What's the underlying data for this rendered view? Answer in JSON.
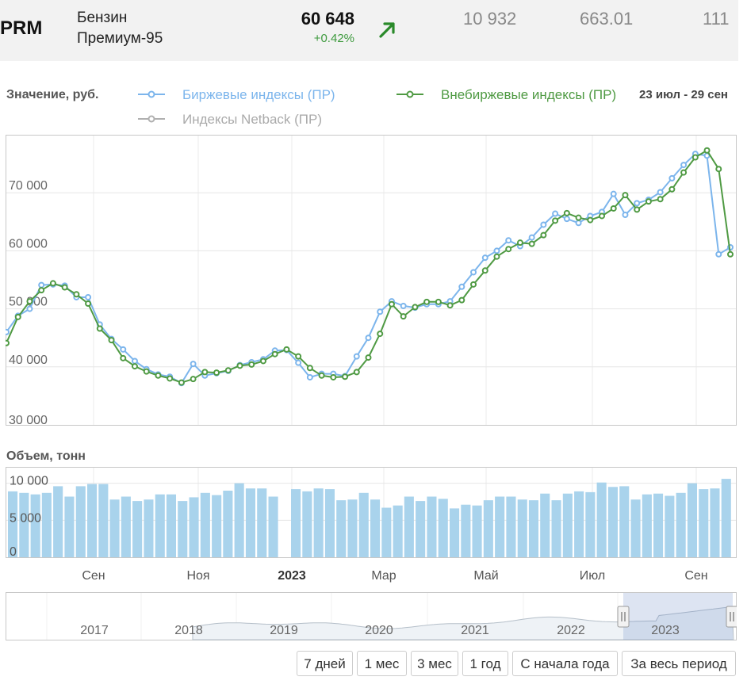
{
  "header": {
    "ticker": "PRM",
    "name_line1": "Бензин",
    "name_line2": "Премиум-95",
    "price": "60 648",
    "change": "+0.42%",
    "trend_icon": "arrow-up-right-icon",
    "stat1": "10 932",
    "stat2": "663.01",
    "stat3": "111",
    "colors": {
      "up": "#3d9a3d",
      "header_bg": "#f2f2f2"
    }
  },
  "legend": {
    "title": "Значение, руб.",
    "series1": "Биржевые индексы (ПР)",
    "series2": "Внебиржевые индексы (ПР)",
    "series3": "Индексы Netback (ПР)",
    "date_range": "23 июл - 29 сен"
  },
  "volume": {
    "title": "Объем, тонн"
  },
  "navigator": {
    "years": [
      "2017",
      "2018",
      "2019",
      "2020",
      "2021",
      "2022",
      "2023"
    ]
  },
  "buttons": [
    "7 дней",
    "1 мес",
    "3 мес",
    "1 год",
    "С начала года",
    "За весь период"
  ],
  "chart_data": [
    {
      "type": "line",
      "title": "",
      "ylabel": "Значение, руб.",
      "ylim": [
        30000,
        80000
      ],
      "yticks": [
        30000,
        40000,
        50000,
        60000,
        70000
      ],
      "ytick_labels": [
        "30 000",
        "40 000",
        "50 000",
        "60 000",
        "70 000"
      ],
      "x_tick_labels": [
        "Сен",
        "Ноя",
        "2023",
        "Мар",
        "Май",
        "Июл",
        "Сен"
      ],
      "grid": true,
      "legend_position": "top",
      "colors": {
        "exchange": "#7cb5ec",
        "otc": "#4f9a43",
        "netback": "#aaaaaa"
      },
      "series": [
        {
          "name": "Биржевые индексы (ПР)",
          "values": [
            46000,
            48800,
            50000,
            54100,
            54200,
            54000,
            52000,
            52000,
            47300,
            44800,
            43000,
            41000,
            39600,
            38700,
            38300,
            37200,
            40500,
            38500,
            38900,
            39300,
            40300,
            40800,
            41300,
            42800,
            42900,
            40700,
            38200,
            38800,
            38800,
            38400,
            41800,
            45000,
            49500,
            51300,
            50500,
            50200,
            50800,
            50800,
            51300,
            53800,
            56300,
            58800,
            60000,
            61800,
            60800,
            62300,
            64500,
            66400,
            65500,
            64800,
            66000,
            66700,
            69800,
            66200,
            68200,
            68800,
            70100,
            72500,
            74800,
            76700,
            76400,
            59400,
            60600
          ]
        },
        {
          "name": "Внебиржевые индексы (ПР)",
          "values": [
            44100,
            48600,
            51300,
            53200,
            54400,
            53700,
            52500,
            50900,
            46600,
            44600,
            41500,
            40100,
            39200,
            38500,
            38000,
            37300,
            37900,
            39100,
            39000,
            39400,
            40200,
            40400,
            41000,
            42200,
            43000,
            41800,
            39800,
            38500,
            38200,
            38300,
            39100,
            41600,
            45700,
            50800,
            48700,
            50300,
            51200,
            51200,
            50600,
            51500,
            54200,
            56600,
            59000,
            60300,
            61400,
            61200,
            62700,
            65200,
            66500,
            65700,
            65300,
            66000,
            67300,
            69600,
            67100,
            68500,
            68900,
            70600,
            73500,
            76100,
            77300,
            74100,
            59400
          ]
        },
        {
          "name": "Индексы Netback (ПР)",
          "values": []
        }
      ]
    },
    {
      "type": "bar",
      "title": "",
      "ylabel": "Объем, тонн",
      "ylim": [
        0,
        12000
      ],
      "yticks": [
        0,
        5000,
        10000
      ],
      "ytick_labels": [
        "0",
        "5 000",
        "10 000"
      ],
      "values": [
        8900,
        8700,
        8500,
        8700,
        9600,
        8200,
        9600,
        9900,
        9900,
        7800,
        8200,
        7600,
        7800,
        8500,
        8500,
        7600,
        8100,
        8700,
        8400,
        9000,
        10000,
        9300,
        9300,
        8200,
        0,
        9200,
        8900,
        9300,
        9200,
        7700,
        7800,
        8700,
        7800,
        6700,
        7000,
        8200,
        7600,
        8200,
        7900,
        6600,
        7100,
        7000,
        7700,
        8200,
        8200,
        7800,
        7700,
        8600,
        7700,
        8600,
        8900,
        8800,
        10100,
        9500,
        9600,
        7800,
        8500,
        8600,
        8300,
        8700,
        10000,
        9200,
        9300,
        10600
      ]
    }
  ]
}
